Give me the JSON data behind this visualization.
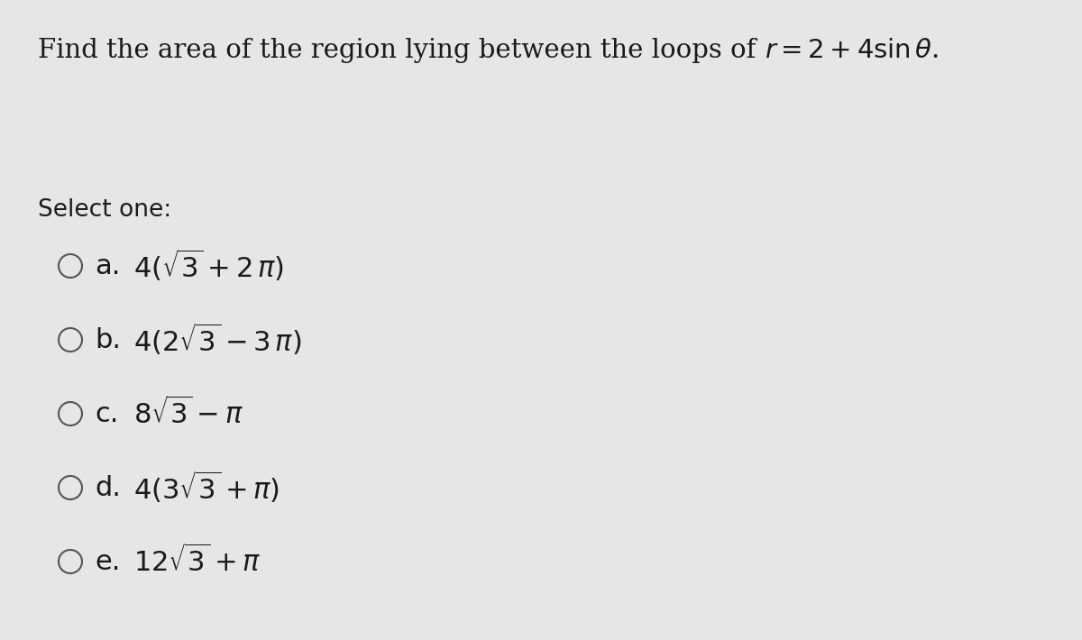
{
  "title_plain": "Find the area of the region lying between the loops of ",
  "title_formula": "$r = 2+4\\sin\\theta$.",
  "select_one": "Select one:",
  "options": [
    {
      "label": "a.",
      "formula": "$4(\\sqrt{3}+2\\,\\pi)$"
    },
    {
      "label": "b.",
      "formula": "$4(2\\sqrt{3}-3\\,\\pi)$"
    },
    {
      "label": "c.",
      "formula": "$8\\sqrt{3}-\\pi$"
    },
    {
      "label": "d.",
      "formula": "$4(3\\sqrt{3}+\\pi)$"
    },
    {
      "label": "e.",
      "formula": "$12\\sqrt{3}+\\pi$"
    }
  ],
  "bg_color": "#e4e6e8",
  "text_color": "#1a1a1a",
  "title_fontsize": 21,
  "select_fontsize": 19,
  "option_fontsize": 22,
  "circle_facecolor": "#e4e6e8",
  "circle_edgecolor": "#555555",
  "circle_lw": 1.5
}
